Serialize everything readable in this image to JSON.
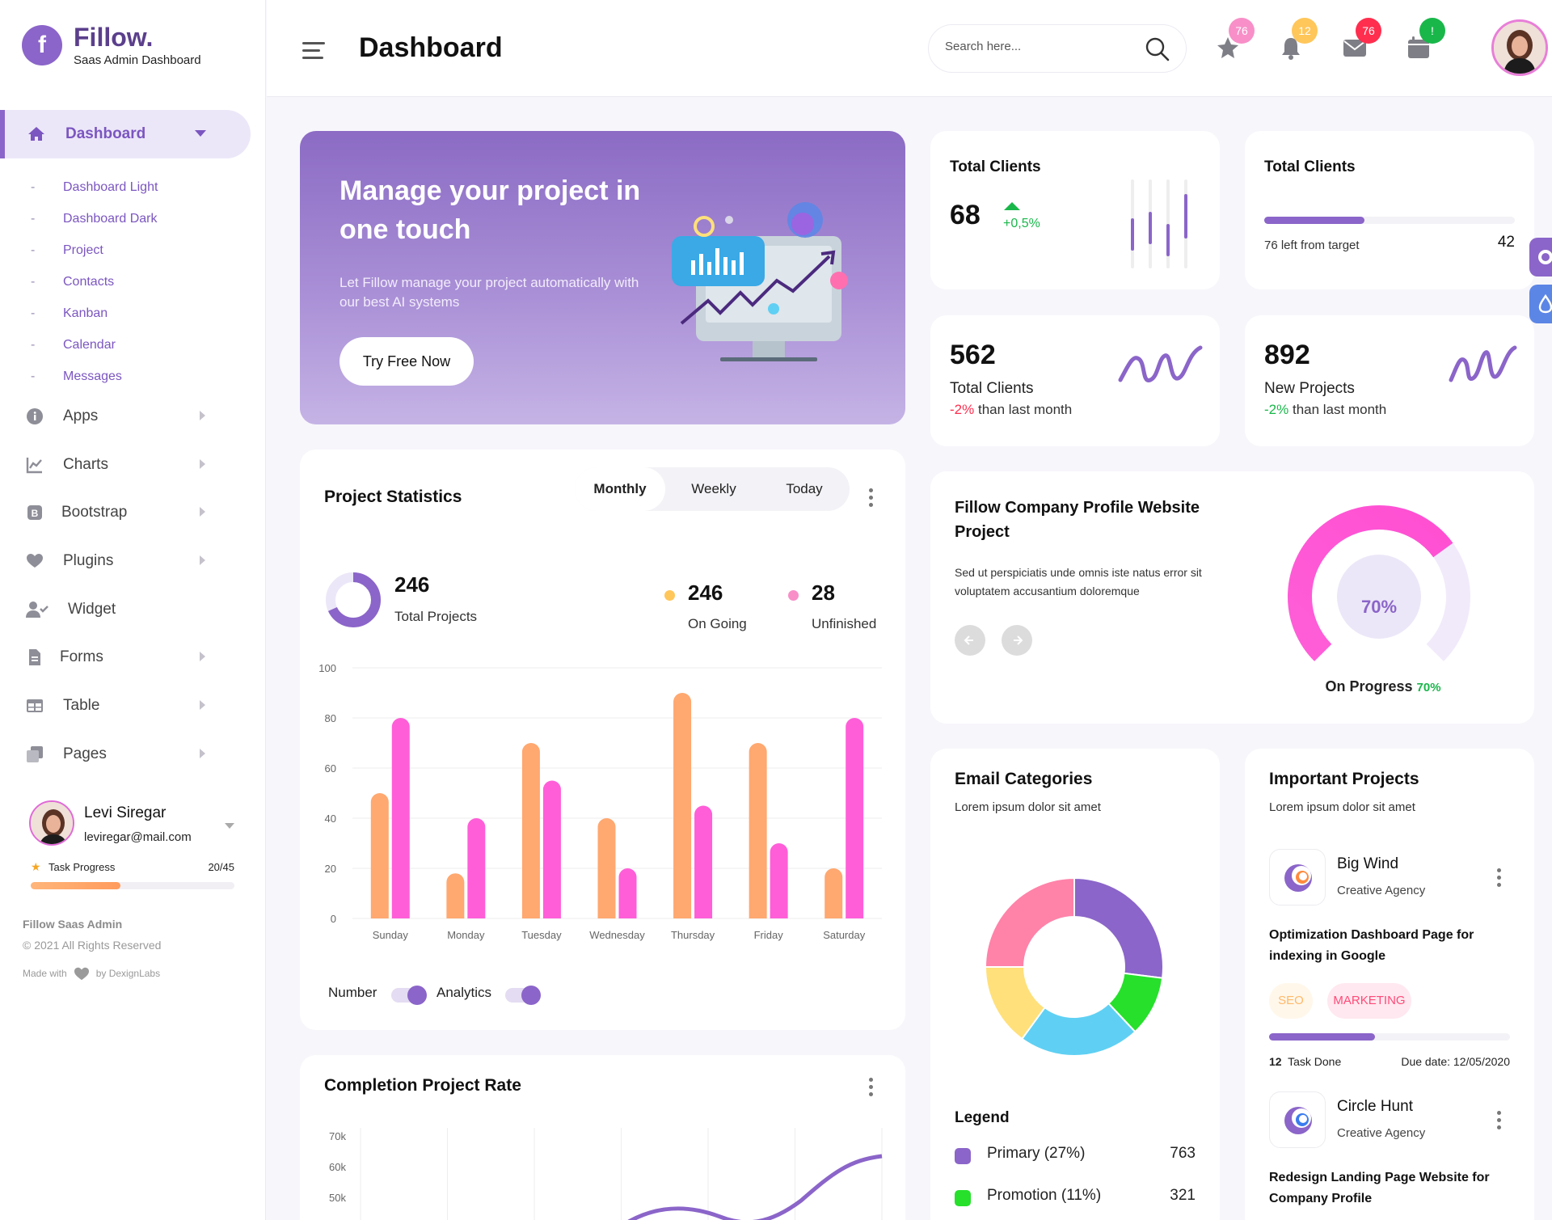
{
  "brand": {
    "name": "Fillow.",
    "subtitle": "Saas Admin Dashboard",
    "logo_letter": "f"
  },
  "sidebar": {
    "active": {
      "label": "Dashboard",
      "icon": "home-icon"
    },
    "subitems": [
      "Dashboard Light",
      "Dashboard Dark",
      "Project",
      "Contacts",
      "Kanban",
      "Calendar",
      "Messages"
    ],
    "items": [
      {
        "label": "Apps",
        "icon": "info-icon"
      },
      {
        "label": "Charts",
        "icon": "chart-icon"
      },
      {
        "label": "Bootstrap",
        "icon": "bootstrap-icon"
      },
      {
        "label": "Plugins",
        "icon": "heart-icon"
      },
      {
        "label": "Widget",
        "icon": "user-check-icon"
      },
      {
        "label": "Forms",
        "icon": "file-icon"
      },
      {
        "label": "Table",
        "icon": "table-icon"
      },
      {
        "label": "Pages",
        "icon": "copy-icon"
      }
    ],
    "profile": {
      "name": "Levi Siregar",
      "email": "leviregar@mail.com"
    },
    "task": {
      "label": "Task Progress",
      "value": "20/45",
      "progress": 0.44
    },
    "footer": {
      "title": "Fillow Saas Admin",
      "copyright": "© 2021 All Rights Reserved",
      "made_with": "Made with",
      "by": "by DexignLabs"
    }
  },
  "header": {
    "title": "Dashboard",
    "search_placeholder": "Search here...",
    "icons": [
      {
        "name": "star-icon",
        "badge": "76",
        "color": "#f88fc8"
      },
      {
        "name": "bell-icon",
        "badge": "12",
        "color": "#ffc65a"
      },
      {
        "name": "mail-icon",
        "badge": "76",
        "color": "#ff2e4e"
      },
      {
        "name": "calendar-icon",
        "badge": "!",
        "color": "#19b74a"
      }
    ]
  },
  "hero": {
    "title": "Manage your project in one touch",
    "text": "Let Fillow manage your project automatically with our best AI systems",
    "button": "Try Free Now"
  },
  "stats": {
    "total_clients_1": {
      "title": "Total Clients",
      "value": "68",
      "change": "+0,5%"
    },
    "total_clients_2": {
      "title": "Total Clients",
      "left_text": "76 left from target",
      "value": "42",
      "progress": 0.4
    },
    "total_clients_3": {
      "value": "562",
      "label": "Total Clients",
      "change": "-2%",
      "suffix": "than last month"
    },
    "new_projects": {
      "value": "892",
      "label": "New Projects",
      "change": "-2%",
      "suffix": "than last month"
    }
  },
  "project_statistics": {
    "title": "Project Statistics",
    "tabs": [
      "Monthly",
      "Weekly",
      "Today"
    ],
    "active_tab": "Monthly",
    "total": {
      "value": "246",
      "label": "Total Projects"
    },
    "going": {
      "value": "246",
      "label": "On Going",
      "color": "#ffc65a"
    },
    "unfinished": {
      "value": "28",
      "label": "Unfinished",
      "color": "#f88fc8"
    },
    "toggles": {
      "number": "Number",
      "analytics": "Analytics"
    }
  },
  "chart_data": [
    {
      "type": "bar",
      "categories": [
        "Sunday",
        "Monday",
        "Tuesday",
        "Wednesday",
        "Thursday",
        "Friday",
        "Saturday"
      ],
      "series": [
        {
          "values": [
            50,
            18,
            70,
            40,
            90,
            70,
            20
          ],
          "color": "#ffa870"
        },
        {
          "values": [
            80,
            40,
            55,
            20,
            45,
            30,
            80
          ],
          "color": "#ff5ed8"
        }
      ],
      "yticks": [
        0,
        20,
        40,
        60,
        80,
        100
      ],
      "ylim": [
        0,
        100
      ]
    },
    {
      "type": "donut",
      "title": "Email Categories",
      "slices": [
        {
          "label": "Primary",
          "value": 27,
          "color": "#8b65c9"
        },
        {
          "label": "Promotion",
          "value": 11,
          "color": "#26e02c"
        },
        {
          "label": "",
          "value": 22,
          "color": "#5fd0f3"
        },
        {
          "label": "",
          "value": 15,
          "color": "#ffe07a"
        },
        {
          "label": "",
          "value": 25,
          "color": "#ff82a9"
        }
      ]
    },
    {
      "type": "line",
      "title": "Completion Project Rate",
      "yticks": [
        "70k",
        "60k",
        "50k"
      ]
    }
  ],
  "company_profile": {
    "title": "Fillow Company Profile Website Project",
    "text": "Sed ut perspiciatis unde omnis iste natus error sit voluptatem accusantium doloremque",
    "progress_label": "70%",
    "progress": 0.7,
    "status": "On Progress",
    "status_value": "70%"
  },
  "completion": {
    "title": "Completion Project Rate"
  },
  "email_categories": {
    "title": "Email Categories",
    "subtitle": "Lorem ipsum dolor sit amet",
    "legend_title": "Legend",
    "legend": [
      {
        "label": "Primary (27%)",
        "value": "763",
        "color": "#8b65c9"
      },
      {
        "label": "Promotion (11%)",
        "value": "321",
        "color": "#26e02c"
      }
    ]
  },
  "important_projects": {
    "title": "Important Projects",
    "subtitle": "Lorem ipsum dolor sit amet",
    "projects": [
      {
        "name": "Big Wind",
        "agency": "Creative Agency",
        "desc": "Optimization Dashboard Page for indexing in Google",
        "tags": [
          "SEO",
          "MARKETING"
        ],
        "progress": 0.44,
        "task_count": "12",
        "task_label": "Task Done",
        "due": "Due date: 12/05/2020"
      },
      {
        "name": "Circle Hunt",
        "agency": "Creative Agency",
        "desc": "Redesign Landing Page Website for Company Profile"
      }
    ]
  }
}
